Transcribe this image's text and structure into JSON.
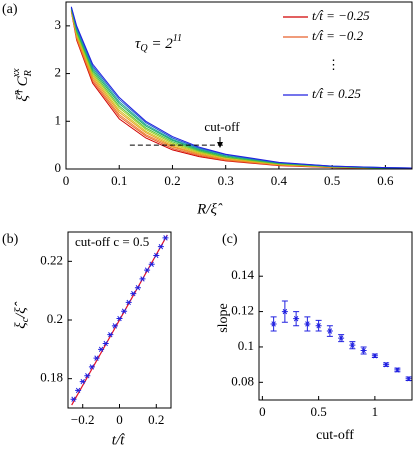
{
  "chart_data": [
    {
      "type": "line",
      "panel_label": "(a)",
      "xlabel": "R/ξ̂",
      "ylabel": [
        "ξ̂",
        "η",
        " C",
        "R",
        "xx"
      ],
      "annotation": [
        "τ",
        "Q",
        " = 2",
        "11"
      ],
      "legend_ellipsis": "⋮",
      "xlim": [
        0,
        0.65
      ],
      "xticks": [
        0,
        0.1,
        0.2,
        0.3,
        0.4,
        0.5,
        0.6
      ],
      "ylim": [
        0,
        3.5
      ],
      "yticks": [
        0,
        1,
        2,
        3
      ],
      "x": [
        0.01,
        0.02,
        0.05,
        0.1,
        0.15,
        0.2,
        0.25,
        0.3,
        0.4,
        0.5,
        0.6,
        0.65
      ],
      "series": [
        {
          "name": "t/t̂ = −0.25",
          "color": "#d00000",
          "values": [
            3.3,
            2.7,
            1.8,
            1.05,
            0.65,
            0.4,
            0.26,
            0.17,
            0.07,
            0.03,
            0.01,
            0.01
          ]
        },
        {
          "name": "t/t̂ = −0.2",
          "color": "#e8602c",
          "values": [
            3.31,
            2.73,
            1.84,
            1.1,
            0.69,
            0.43,
            0.28,
            0.18,
            0.08,
            0.03,
            0.01,
            0.01
          ]
        },
        {
          "color": "#f08030",
          "values": [
            3.32,
            2.76,
            1.88,
            1.14,
            0.72,
            0.46,
            0.3,
            0.2,
            0.08,
            0.04,
            0.01,
            0.01
          ]
        },
        {
          "color": "#e8a020",
          "values": [
            3.33,
            2.79,
            1.92,
            1.19,
            0.76,
            0.48,
            0.32,
            0.21,
            0.09,
            0.04,
            0.02,
            0.01
          ]
        },
        {
          "color": "#d0c020",
          "values": [
            3.34,
            2.82,
            1.96,
            1.23,
            0.79,
            0.51,
            0.34,
            0.23,
            0.1,
            0.04,
            0.02,
            0.01
          ]
        },
        {
          "color": "#a0d020",
          "values": [
            3.35,
            2.85,
            2.0,
            1.28,
            0.83,
            0.54,
            0.36,
            0.24,
            0.11,
            0.05,
            0.02,
            0.02
          ]
        },
        {
          "color": "#50c040",
          "values": [
            3.36,
            2.88,
            2.04,
            1.32,
            0.86,
            0.57,
            0.38,
            0.25,
            0.11,
            0.05,
            0.02,
            0.02
          ]
        },
        {
          "color": "#20b060",
          "values": [
            3.37,
            2.91,
            2.08,
            1.37,
            0.9,
            0.6,
            0.4,
            0.27,
            0.12,
            0.05,
            0.02,
            0.02
          ]
        },
        {
          "color": "#20a0a0",
          "values": [
            3.38,
            2.94,
            2.12,
            1.41,
            0.93,
            0.62,
            0.42,
            0.28,
            0.13,
            0.05,
            0.03,
            0.02
          ]
        },
        {
          "color": "#2060d0",
          "values": [
            3.39,
            2.97,
            2.16,
            1.46,
            0.97,
            0.65,
            0.44,
            0.3,
            0.13,
            0.06,
            0.03,
            0.02
          ]
        },
        {
          "name": "t/t̂ = 0.25",
          "color": "#2020e0",
          "values": [
            3.4,
            3.0,
            2.2,
            1.5,
            1.0,
            0.68,
            0.46,
            0.31,
            0.14,
            0.06,
            0.03,
            0.02
          ]
        }
      ],
      "cutoff": {
        "label": "cut-off",
        "y": 0.5,
        "x": [
          0.12,
          0.3
        ]
      }
    },
    {
      "type": "scatter",
      "panel_label": "(b)",
      "xlabel": "t/t̂",
      "ylabel": [
        "ξ",
        "c",
        "/ξ̂"
      ],
      "annotation": "cut-off c = 0.5",
      "xlim": [
        -0.28,
        0.28
      ],
      "xticks": [
        {
          "value": -0.2,
          "label": "−0.2"
        },
        0,
        0.2
      ],
      "ylim": [
        0.17,
        0.23
      ],
      "yticks": [
        0.18,
        0.2,
        0.22
      ],
      "color": "#2020e0",
      "x": [
        -0.25,
        -0.225,
        -0.2,
        -0.175,
        -0.15,
        -0.125,
        -0.1,
        -0.075,
        -0.05,
        -0.025,
        0,
        0.025,
        0.05,
        0.075,
        0.1,
        0.125,
        0.15,
        0.175,
        0.2,
        0.225,
        0.25
      ],
      "values": [
        0.173,
        0.176,
        0.179,
        0.181,
        0.184,
        0.187,
        0.19,
        0.192,
        0.195,
        0.198,
        0.2005,
        0.203,
        0.206,
        0.209,
        0.211,
        0.214,
        0.217,
        0.219,
        0.222,
        0.225,
        0.228
      ],
      "fit": {
        "color": "#e0102a",
        "x": [
          -0.26,
          0.26
        ],
        "values": [
          0.171,
          0.229
        ]
      }
    },
    {
      "type": "errorbar",
      "panel_label": "(c)",
      "xlabel": "cut-off",
      "ylabel": "slope",
      "xlim": [
        -0.03,
        1.33
      ],
      "xticks": [
        0,
        0.5,
        1
      ],
      "ylim": [
        0.07,
        0.165
      ],
      "yticks": [
        0.08,
        0.1,
        0.12,
        0.14
      ],
      "color": "#2020e0",
      "x": [
        0.1,
        0.2,
        0.3,
        0.4,
        0.5,
        0.6,
        0.7,
        0.8,
        0.9,
        1.0,
        1.1,
        1.2,
        1.3
      ],
      "values": [
        0.113,
        0.12,
        0.116,
        0.113,
        0.112,
        0.109,
        0.105,
        0.101,
        0.098,
        0.095,
        0.09,
        0.087,
        0.082
      ],
      "errors": [
        0.004,
        0.006,
        0.004,
        0.004,
        0.003,
        0.003,
        0.002,
        0.002,
        0.002,
        0.001,
        0.001,
        0.001,
        0.001
      ]
    }
  ]
}
